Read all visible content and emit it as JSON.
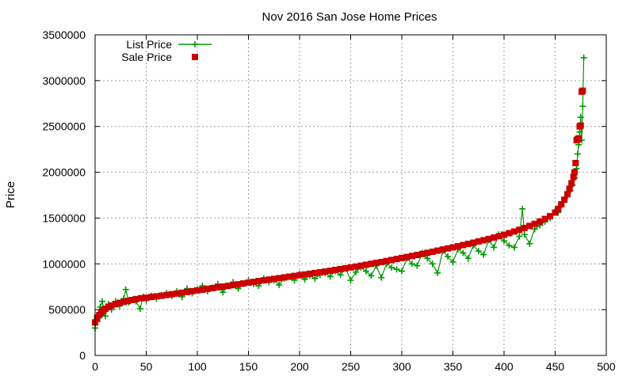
{
  "chart_data": {
    "type": "scatter",
    "title": "Nov 2016 San Jose Home Prices",
    "xlabel": "",
    "ylabel": "Price",
    "xlim": [
      0,
      500
    ],
    "ylim": [
      0,
      3500000
    ],
    "grid": true,
    "legend_position": "top-left",
    "x_ticks": [
      "0",
      "50",
      "100",
      "150",
      "200",
      "250",
      "300",
      "350",
      "400",
      "450",
      "500"
    ],
    "y_ticks": [
      "0",
      "500000",
      "1000000",
      "1500000",
      "2000000",
      "2500000",
      "3000000",
      "3500000"
    ],
    "series": [
      {
        "name": "List Price",
        "style": "line-with-plus-markers",
        "color": "#009900",
        "x": [
          0,
          2,
          5,
          7,
          10,
          13,
          16,
          20,
          24,
          28,
          30,
          33,
          37,
          40,
          44,
          47,
          50,
          55,
          60,
          65,
          70,
          75,
          80,
          85,
          90,
          95,
          100,
          105,
          110,
          115,
          120,
          125,
          130,
          135,
          140,
          145,
          150,
          155,
          160,
          165,
          170,
          175,
          180,
          185,
          190,
          195,
          200,
          205,
          210,
          215,
          220,
          225,
          230,
          235,
          240,
          245,
          250,
          255,
          260,
          265,
          270,
          275,
          280,
          285,
          290,
          295,
          300,
          305,
          310,
          315,
          320,
          325,
          330,
          335,
          340,
          345,
          350,
          355,
          360,
          365,
          370,
          375,
          380,
          385,
          390,
          395,
          400,
          405,
          410,
          415,
          418,
          420,
          425,
          430,
          435,
          440,
          445,
          450,
          453,
          456,
          459,
          462,
          465,
          467,
          469,
          471,
          472,
          473,
          474,
          475,
          476,
          477,
          478
        ],
        "y": [
          300000,
          440000,
          530000,
          590000,
          430000,
          560000,
          500000,
          590000,
          540000,
          620000,
          720000,
          580000,
          610000,
          590000,
          510000,
          640000,
          600000,
          650000,
          620000,
          660000,
          680000,
          650000,
          700000,
          640000,
          730000,
          680000,
          720000,
          760000,
          700000,
          740000,
          780000,
          690000,
          760000,
          800000,
          730000,
          780000,
          820000,
          780000,
          760000,
          840000,
          800000,
          820000,
          770000,
          840000,
          860000,
          820000,
          890000,
          830000,
          870000,
          840000,
          880000,
          900000,
          860000,
          920000,
          880000,
          950000,
          820000,
          910000,
          960000,
          920000,
          870000,
          980000,
          850000,
          1000000,
          960000,
          940000,
          920000,
          1060000,
          1000000,
          980000,
          1120000,
          1060000,
          1000000,
          900000,
          1140000,
          1080000,
          1020000,
          1160000,
          1120000,
          1060000,
          1200000,
          1140000,
          1100000,
          1260000,
          1180000,
          1320000,
          1250000,
          1200000,
          1180000,
          1300000,
          1600000,
          1320000,
          1220000,
          1380000,
          1420000,
          1460000,
          1500000,
          1580000,
          1560000,
          1640000,
          1700000,
          1740000,
          1800000,
          1860000,
          1940000,
          2040000,
          2200000,
          2300000,
          2440000,
          2600000,
          2350000,
          2720000,
          3250000
        ]
      },
      {
        "name": "Sale Price",
        "style": "square-markers",
        "color": "#cc0000",
        "x": [
          0,
          2,
          4,
          6,
          8,
          10,
          13,
          16,
          20,
          24,
          28,
          32,
          36,
          40,
          45,
          50,
          55,
          60,
          65,
          70,
          75,
          80,
          85,
          90,
          95,
          100,
          105,
          110,
          115,
          120,
          125,
          130,
          135,
          140,
          145,
          150,
          155,
          160,
          165,
          170,
          175,
          180,
          185,
          190,
          195,
          200,
          205,
          210,
          215,
          220,
          225,
          230,
          235,
          240,
          245,
          250,
          255,
          260,
          265,
          270,
          275,
          280,
          285,
          290,
          295,
          300,
          305,
          310,
          315,
          320,
          325,
          330,
          335,
          340,
          345,
          350,
          355,
          360,
          365,
          370,
          375,
          380,
          385,
          390,
          395,
          400,
          405,
          410,
          415,
          420,
          425,
          430,
          435,
          440,
          445,
          450,
          453,
          456,
          459,
          462,
          464,
          466,
          468,
          469,
          470,
          471,
          472,
          473,
          474,
          475,
          476,
          477
        ],
        "y": [
          360000,
          400000,
          440000,
          470000,
          490000,
          510000,
          530000,
          545000,
          560000,
          575000,
          585000,
          595000,
          605000,
          615000,
          625000,
          630000,
          638000,
          645000,
          652000,
          660000,
          668000,
          676000,
          685000,
          693000,
          702000,
          710000,
          718000,
          727000,
          735000,
          744000,
          752000,
          760000,
          768000,
          777000,
          786000,
          795000,
          803000,
          812000,
          820000,
          828000,
          836000,
          844000,
          852000,
          860000,
          868000,
          876000,
          884000,
          892000,
          900000,
          908000,
          916000,
          925000,
          934000,
          943000,
          952000,
          961000,
          970000,
          980000,
          990000,
          1000000,
          1010000,
          1020000,
          1031000,
          1042000,
          1053000,
          1064000,
          1075000,
          1086000,
          1097000,
          1108000,
          1120000,
          1132000,
          1144000,
          1156000,
          1168000,
          1180000,
          1192000,
          1205000,
          1218000,
          1231000,
          1244000,
          1258000,
          1272000,
          1287000,
          1302000,
          1318000,
          1335000,
          1353000,
          1372000,
          1392000,
          1414000,
          1437000,
          1462000,
          1490000,
          1520000,
          1560000,
          1600000,
          1650000,
          1700000,
          1760000,
          1820000,
          1880000,
          1950000,
          2000000,
          2100000,
          2350000,
          2360000,
          2370000,
          2500000,
          2510000,
          2880000,
          2890000
        ]
      }
    ]
  }
}
